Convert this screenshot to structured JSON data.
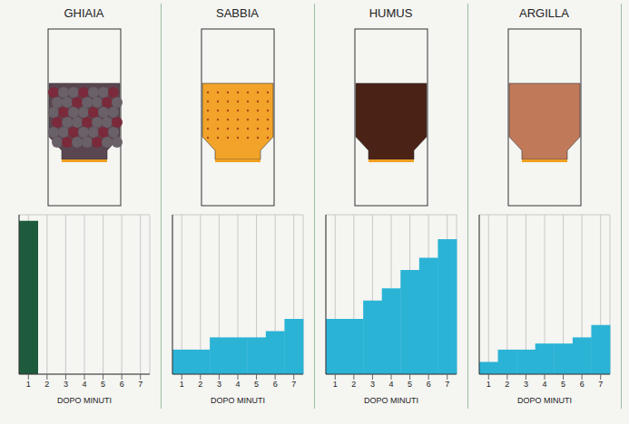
{
  "chart_data": [
    {
      "type": "bar",
      "title": "GHIAIA",
      "categories": [
        "1",
        "2",
        "3",
        "4",
        "5",
        "6",
        "7"
      ],
      "values": [
        12.5,
        null,
        null,
        null,
        null,
        null,
        null
      ],
      "color": "#1e5a3c",
      "xlabel": "DOPO MINUTI",
      "ylim": [
        0,
        13
      ],
      "yticks": [
        0,
        1,
        2,
        3,
        4,
        5,
        6,
        7,
        8,
        9,
        10,
        11,
        12,
        13
      ],
      "grid": true,
      "tick_labels": "x"
    },
    {
      "type": "bar",
      "title": "SABBIA",
      "categories": [
        "1",
        "2",
        "3",
        "4",
        "5",
        "6",
        "7"
      ],
      "values": [
        2,
        2,
        3,
        3,
        3,
        3.5,
        4.5
      ],
      "color": "#2bb3d6",
      "xlabel": "DOPO MINUTI",
      "ylim": [
        0,
        13
      ],
      "yticks": [
        0,
        1,
        2,
        3,
        4,
        5,
        6,
        7,
        8,
        9,
        10,
        11,
        12,
        13
      ],
      "grid": true,
      "tick_labels": "x"
    },
    {
      "type": "bar",
      "title": "HUMUS",
      "categories": [
        "1",
        "2",
        "3",
        "4",
        "5",
        "6",
        "7"
      ],
      "values": [
        4.5,
        4.5,
        6,
        7,
        8.5,
        9.5,
        11
      ],
      "color": "#2bb3d6",
      "xlabel": "DOPO MINUTI",
      "ylim": [
        0,
        13
      ],
      "yticks": [
        0,
        1,
        2,
        3,
        4,
        5,
        6,
        7,
        8,
        9,
        10,
        11,
        12,
        13
      ],
      "grid": true,
      "tick_labels": "x"
    },
    {
      "type": "bar",
      "title": "ARGILLA",
      "categories": [
        "1",
        "2",
        "3",
        "4",
        "5",
        "6",
        "7"
      ],
      "values": [
        1,
        2,
        2,
        2.5,
        2.5,
        3,
        4
      ],
      "color": "#2bb3d6",
      "xlabel": "DOPO MINUTI",
      "ylim": [
        0,
        13
      ],
      "yticks": [
        0,
        1,
        2,
        3,
        4,
        5,
        6,
        7,
        8,
        9,
        10,
        11,
        12,
        13
      ],
      "grid": true,
      "tick_labels": "x"
    }
  ]
}
